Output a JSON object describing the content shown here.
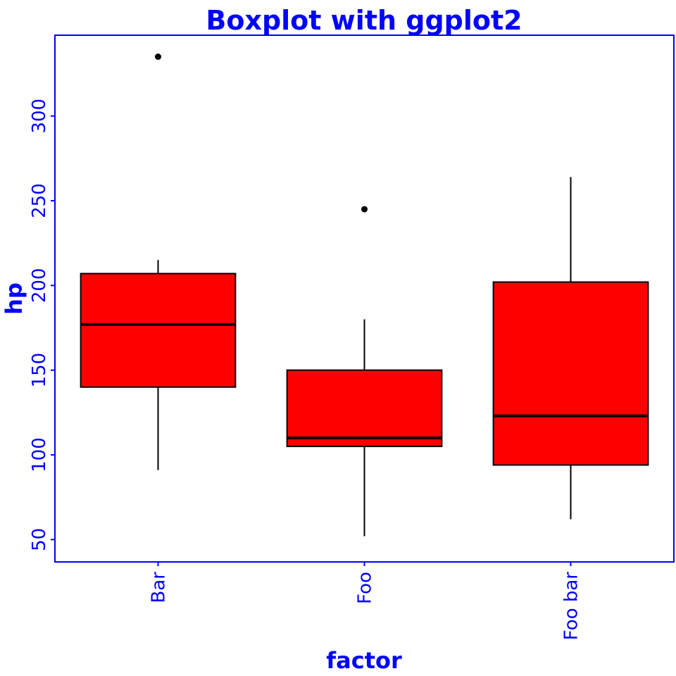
{
  "chart_data": {
    "type": "boxplot",
    "title": "Boxplot with ggplot2",
    "xlabel": "factor",
    "ylabel": "hp",
    "categories": [
      "Bar",
      "Foo",
      "Foo bar"
    ],
    "boxes": [
      {
        "category": "Bar",
        "whisker_low": 91,
        "q1": 140,
        "median": 177,
        "q3": 207,
        "whisker_high": 215,
        "outliers": [
          335
        ]
      },
      {
        "category": "Foo",
        "whisker_low": 52,
        "q1": 105,
        "median": 110,
        "q3": 150,
        "whisker_high": 180,
        "outliers": [
          245
        ]
      },
      {
        "category": "Foo bar",
        "whisker_low": 62,
        "q1": 94,
        "median": 123,
        "q3": 202,
        "whisker_high": 264,
        "outliers": []
      }
    ],
    "yticks": [
      "50",
      "100",
      "150",
      "200",
      "250",
      "300"
    ],
    "ytick_values": [
      50,
      100,
      150,
      200,
      250,
      300
    ],
    "ylim": [
      36.8,
      347.7
    ],
    "grid": false,
    "colors": {
      "box_fill": "#ff0000",
      "box_stroke": "#000000",
      "text": "#0000ff",
      "panel_border": "#0000ff",
      "outlier": "#000000"
    }
  }
}
